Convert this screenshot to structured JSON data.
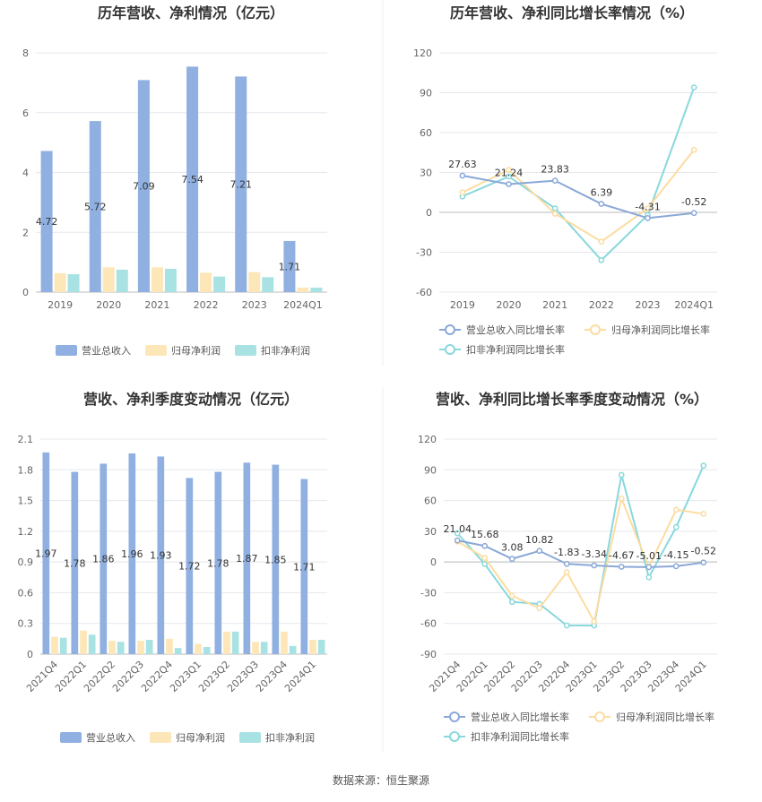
{
  "colors": {
    "revenue": "#8fb0e0",
    "parent_profit": "#fde6b8",
    "nonrecurring_profit": "#a9e2e3",
    "revenue_line": "#8aa8d8",
    "parent_line": "#fcdca0",
    "nonrec_line": "#88d8dc"
  },
  "source_text": "数据来源：恒生聚源",
  "chart_data": [
    {
      "type": "bar",
      "title": "历年营收、净利情况（亿元）",
      "categories": [
        "2019",
        "2020",
        "2021",
        "2022",
        "2023",
        "2024Q1"
      ],
      "ylim": [
        0,
        8
      ],
      "yticks": [
        "0",
        "2",
        "4",
        "6",
        "8"
      ],
      "series": [
        {
          "name": "营业总收入",
          "values": [
            4.72,
            5.72,
            7.09,
            7.54,
            7.21,
            1.71
          ],
          "labels": [
            "4.72",
            "5.72",
            "7.09",
            "7.54",
            "7.21",
            "1.71"
          ]
        },
        {
          "name": "归母净利润",
          "values": [
            0.63,
            0.83,
            0.83,
            0.65,
            0.67,
            0.15
          ]
        },
        {
          "name": "扣非净利润",
          "values": [
            0.6,
            0.75,
            0.78,
            0.52,
            0.5,
            0.15
          ]
        }
      ],
      "grid": true,
      "legend": "bottom"
    },
    {
      "type": "line",
      "title": "历年营收、净利同比增长率情况（%）",
      "categories": [
        "2019",
        "2020",
        "2021",
        "2022",
        "2023",
        "2024Q1"
      ],
      "ylim": [
        -60,
        120
      ],
      "yticks": [
        "-60",
        "-30",
        "0",
        "30",
        "60",
        "90",
        "120"
      ],
      "series": [
        {
          "name": "营业总收入同比增长率",
          "values": [
            27.63,
            21.24,
            23.83,
            6.39,
            -4.31,
            -0.52
          ],
          "labels": [
            "27.63",
            "21.24",
            "23.83",
            "6.39",
            "-4.31",
            "-0.52"
          ]
        },
        {
          "name": "归母净利润同比增长率",
          "values": [
            15,
            32,
            -1,
            -22,
            3,
            47
          ]
        },
        {
          "name": "扣非净利润同比增长率",
          "values": [
            12,
            27,
            3,
            -36,
            -2,
            94
          ]
        }
      ],
      "grid": true,
      "legend": "bottom"
    },
    {
      "type": "bar",
      "title": "营收、净利季度变动情况（亿元）",
      "categories": [
        "2021Q4",
        "2022Q1",
        "2022Q2",
        "2022Q3",
        "2022Q4",
        "2023Q1",
        "2023Q2",
        "2023Q3",
        "2023Q4",
        "2024Q1"
      ],
      "ylim": [
        0,
        2.1
      ],
      "yticks": [
        "0",
        "0.3",
        "0.6",
        "0.9",
        "1.2",
        "1.5",
        "1.8",
        "2.1"
      ],
      "series": [
        {
          "name": "营业总收入",
          "values": [
            1.97,
            1.78,
            1.86,
            1.96,
            1.93,
            1.72,
            1.78,
            1.87,
            1.85,
            1.71
          ],
          "labels": [
            "1.97",
            "1.78",
            "1.86",
            "1.96",
            "1.93",
            "1.72",
            "1.78",
            "1.87",
            "1.85",
            "1.71"
          ]
        },
        {
          "name": "归母净利润",
          "values": [
            0.17,
            0.23,
            0.13,
            0.13,
            0.15,
            0.1,
            0.22,
            0.12,
            0.22,
            0.14
          ]
        },
        {
          "name": "扣非净利润",
          "values": [
            0.16,
            0.19,
            0.12,
            0.14,
            0.06,
            0.07,
            0.22,
            0.12,
            0.08,
            0.14
          ]
        }
      ],
      "grid": true,
      "legend": "bottom"
    },
    {
      "type": "line",
      "title": "营收、净利同比增长率季度变动情况（%）",
      "categories": [
        "2021Q4",
        "2022Q1",
        "2022Q2",
        "2022Q3",
        "2022Q4",
        "2023Q1",
        "2023Q2",
        "2023Q3",
        "2023Q4",
        "2024Q1"
      ],
      "ylim": [
        -90,
        120
      ],
      "yticks": [
        "-90",
        "-60",
        "-30",
        "0",
        "30",
        "60",
        "90",
        "120"
      ],
      "series": [
        {
          "name": "营业总收入同比增长率",
          "values": [
            21.04,
            15.68,
            3.08,
            10.82,
            -1.83,
            -3.34,
            -4.67,
            -5.01,
            -4.15,
            -0.52
          ],
          "labels": [
            "21.04",
            "15.68",
            "3.08",
            "10.82",
            "-1.83",
            "-3.34",
            "-4.67",
            "-5.01",
            "-4.15",
            "-0.52"
          ]
        },
        {
          "name": "归母净利润同比增长率",
          "values": [
            20,
            4,
            -33,
            -45,
            -10,
            -58,
            62,
            -5,
            51,
            47
          ]
        },
        {
          "name": "扣非净利润同比增长率",
          "values": [
            28,
            -2,
            -39,
            -41,
            -62,
            -62,
            85,
            -15,
            34,
            94
          ]
        }
      ],
      "grid": true,
      "legend": "bottom"
    }
  ]
}
